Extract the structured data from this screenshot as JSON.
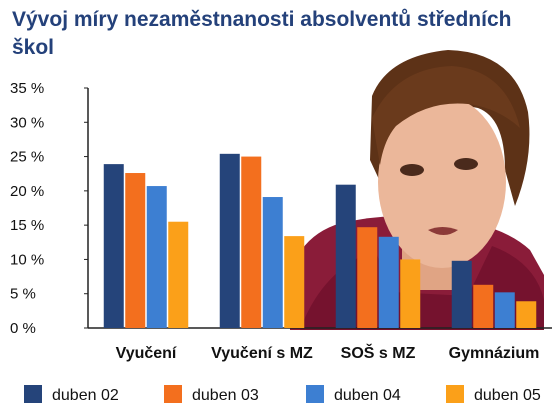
{
  "title": "Vývoj míry nezaměstnanosti absolventů středních škol",
  "chart_data": {
    "type": "bar",
    "categories": [
      "Vyučení",
      "Vyučení s MZ",
      "SOŠ s MZ",
      "Gymnázium"
    ],
    "series": [
      {
        "name": "duben 02",
        "color": "#25447a",
        "values": [
          23.9,
          25.4,
          20.9,
          9.8
        ]
      },
      {
        "name": "duben 03",
        "color": "#f36f1e",
        "values": [
          22.6,
          25.0,
          14.7,
          6.3
        ]
      },
      {
        "name": "duben 04",
        "color": "#3d7fd2",
        "values": [
          20.7,
          19.1,
          13.3,
          5.2
        ]
      },
      {
        "name": "duben 05",
        "color": "#fba019",
        "values": [
          15.5,
          13.4,
          10.0,
          3.9
        ]
      }
    ],
    "yticks": [
      "0 %",
      "5 %",
      "10 %",
      "15 %",
      "20 %",
      "25 %",
      "30 %",
      "35 %"
    ],
    "ylim": [
      0,
      35
    ],
    "grid": false,
    "legend": "bottom",
    "background_photo": "woman-portrait"
  }
}
